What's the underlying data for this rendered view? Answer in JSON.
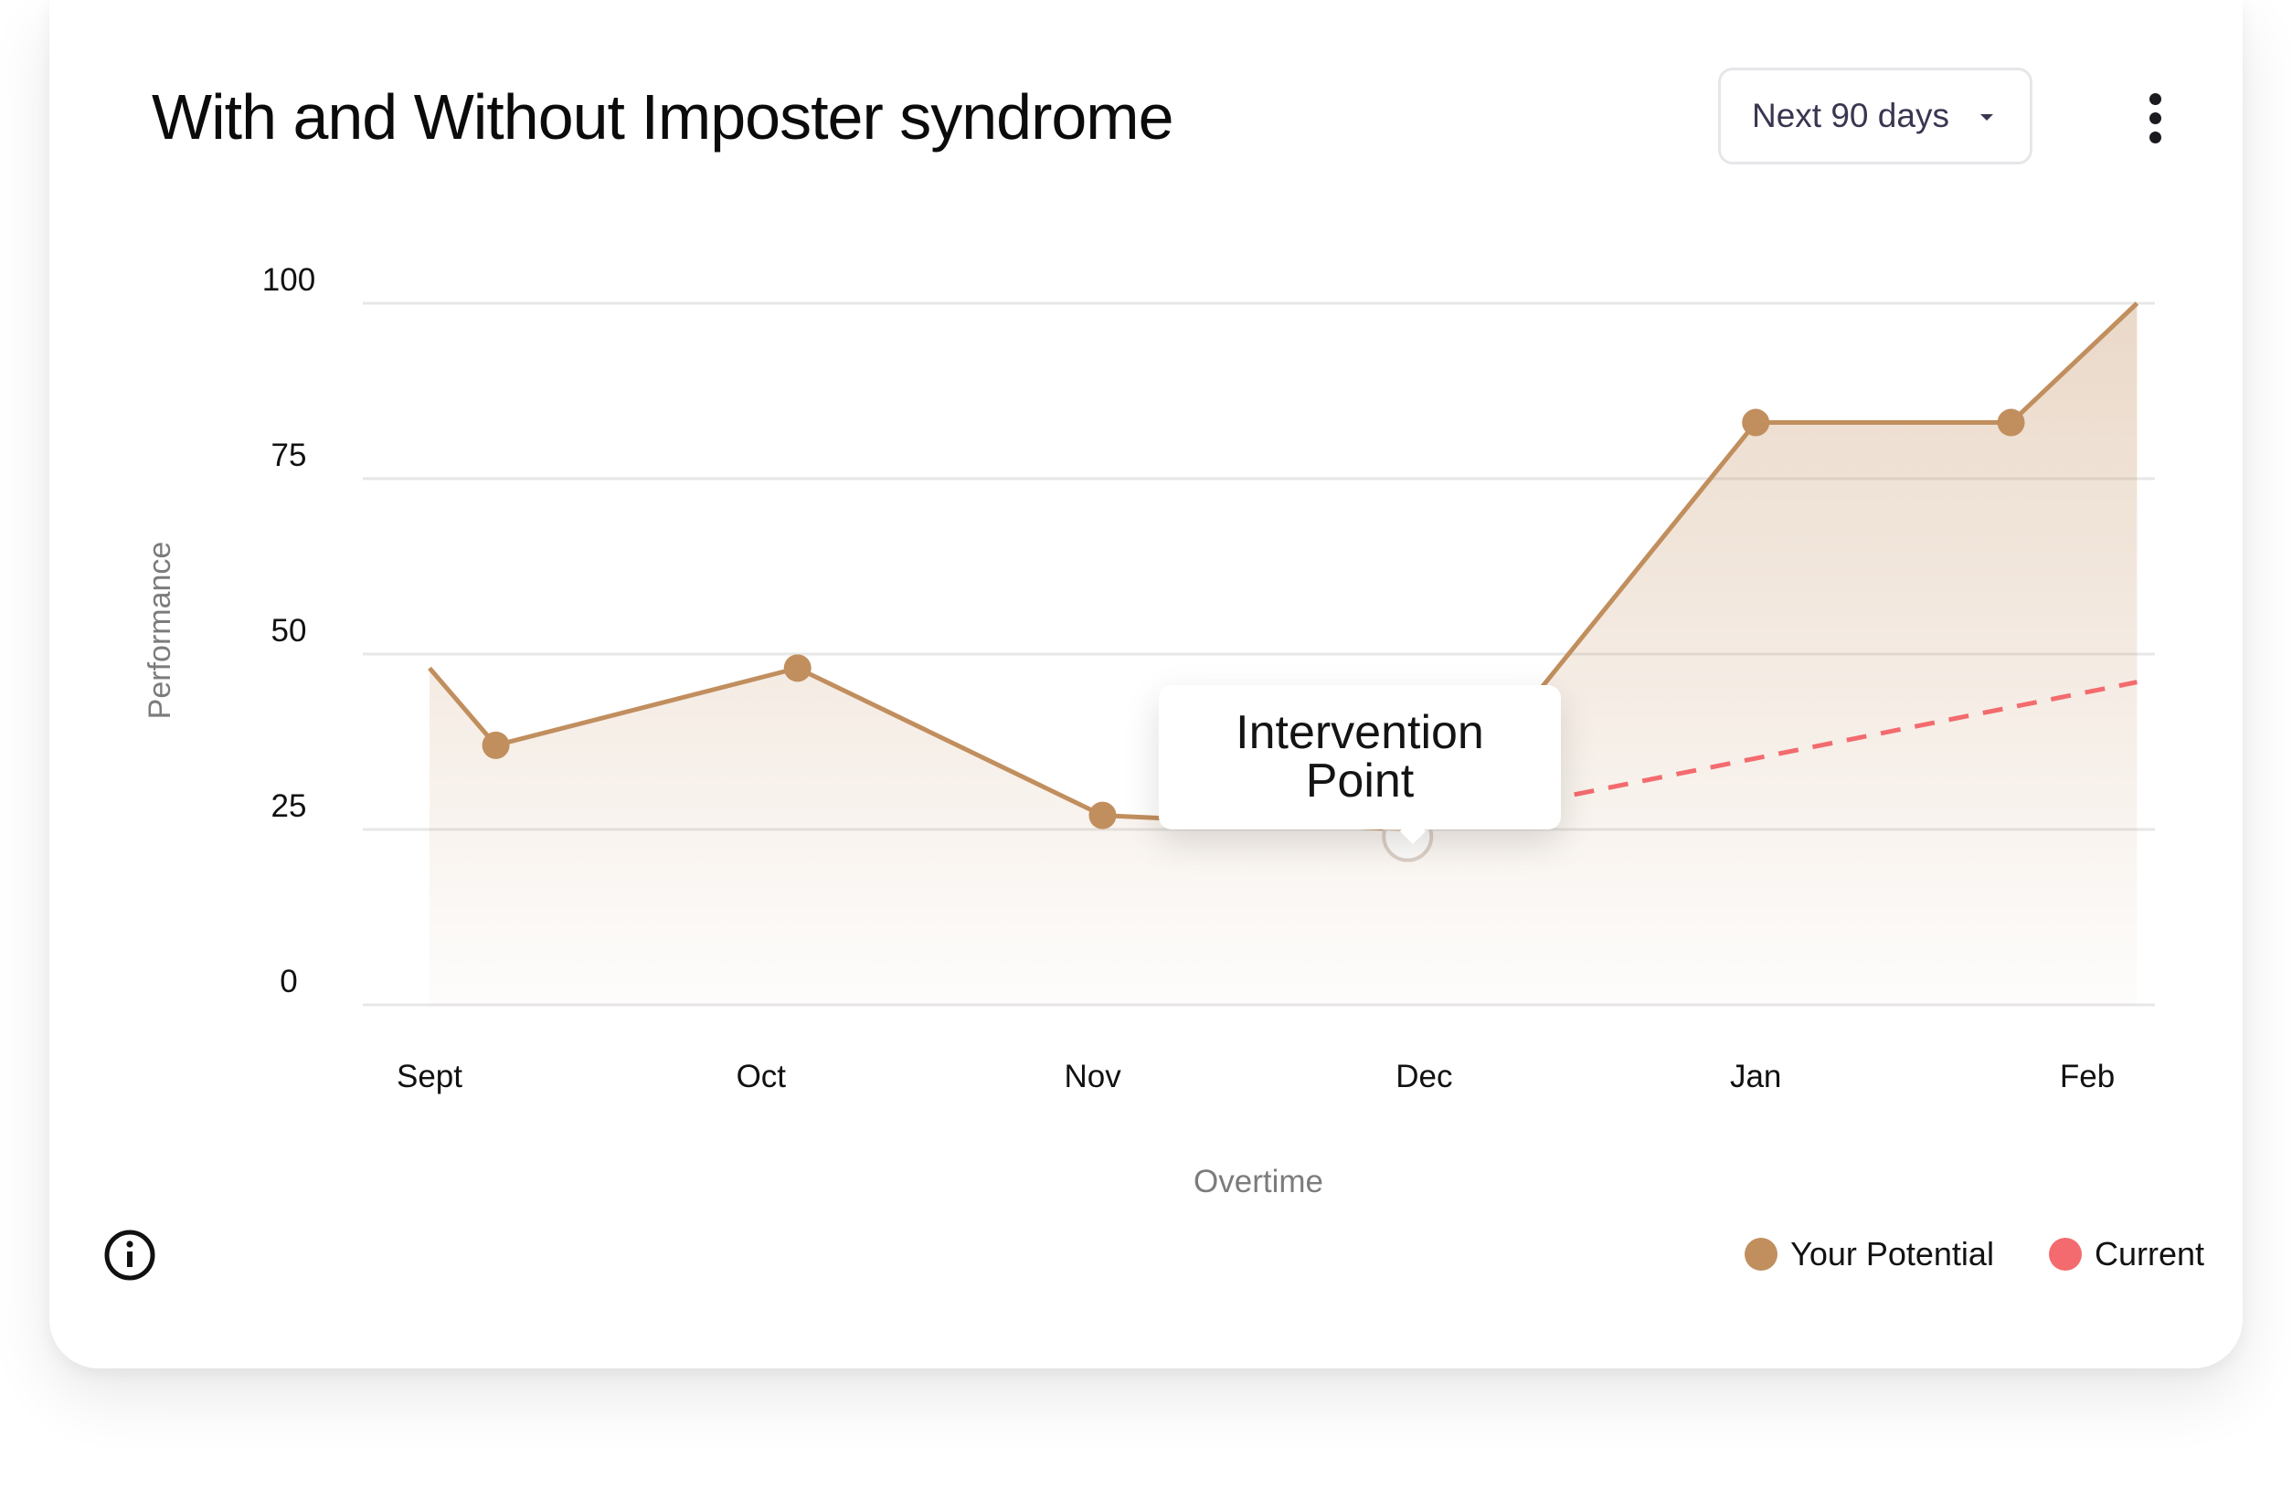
{
  "header": {
    "title": "With and Without Imposter syndrome",
    "range_select": {
      "value": "Next 90 days"
    },
    "more_icon": "more-vertical-icon"
  },
  "footer": {
    "info_icon": "info-icon"
  },
  "tooltip": {
    "text": "Intervention Point"
  },
  "legend": {
    "items": [
      {
        "label": "Your Potential",
        "color": "#c18e5e"
      },
      {
        "label": "Current",
        "color": "#f36b6e"
      }
    ]
  },
  "chart_data": {
    "type": "area",
    "xlabel": "Overtime",
    "ylabel": "Performance",
    "ylim": [
      0,
      100
    ],
    "yticks": [
      0,
      25,
      50,
      75,
      100
    ],
    "grid": true,
    "legend_position": "bottom-right",
    "categories": [
      "Sept",
      "Oct",
      "Nov",
      "Dec",
      "Jan",
      "Feb"
    ],
    "series": [
      {
        "name": "Your Potential",
        "color": "#c18e5e",
        "style": "solid-area",
        "points": [
          {
            "x": 0.0,
            "y": 48,
            "marker": false
          },
          {
            "x": 0.2,
            "y": 37,
            "marker": true
          },
          {
            "x": 1.11,
            "y": 48,
            "marker": true
          },
          {
            "x": 2.03,
            "y": 27,
            "marker": true
          },
          {
            "x": 2.95,
            "y": 25,
            "marker": false
          },
          {
            "x": 3.35,
            "y": 45,
            "marker": false
          },
          {
            "x": 4.0,
            "y": 83,
            "marker": true
          },
          {
            "x": 4.77,
            "y": 83,
            "marker": true
          },
          {
            "x": 5.15,
            "y": 100,
            "marker": false
          }
        ]
      },
      {
        "name": "Current",
        "color": "#f36b6e",
        "style": "dashed",
        "points": [
          {
            "x": 3.35,
            "y": 29
          },
          {
            "x": 5.15,
            "y": 46
          }
        ]
      }
    ],
    "annotation": {
      "x": 2.95,
      "y": 24,
      "text": "Intervention Point"
    }
  }
}
